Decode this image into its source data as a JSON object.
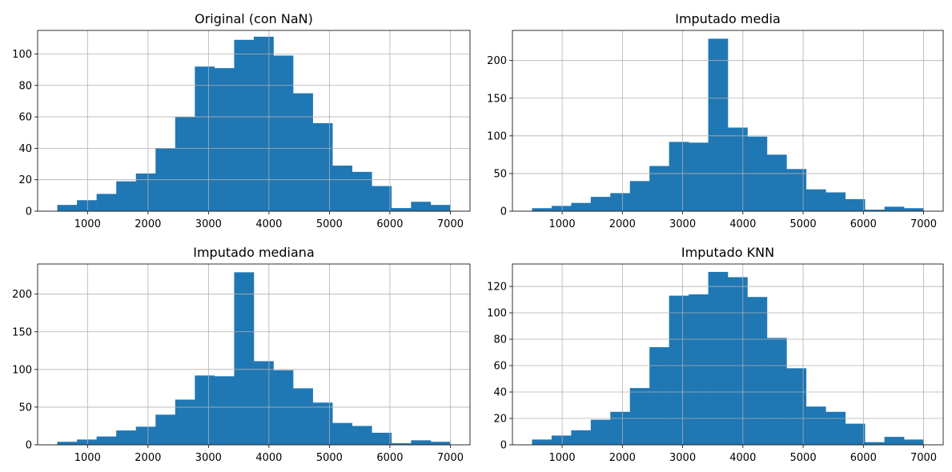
{
  "figure": {
    "background": "#ffffff",
    "bar_color": "#1f77b4",
    "grid_color": "#b0b0b0"
  },
  "chart_data": [
    {
      "type": "bar",
      "title": "Original (con NaN)",
      "bin_edges": [
        500,
        825,
        1150,
        1475,
        1800,
        2125,
        2450,
        2775,
        3100,
        3425,
        3750,
        4075,
        4400,
        4725,
        5050,
        5375,
        5700,
        6025,
        6350,
        6675,
        7000
      ],
      "values": [
        4,
        7,
        11,
        19,
        24,
        40,
        60,
        92,
        91,
        109,
        111,
        99,
        75,
        56,
        29,
        25,
        16,
        2,
        6,
        4
      ],
      "xlim": [
        500,
        7000
      ],
      "ylim": [
        0,
        115
      ],
      "x_ticks": [
        1000,
        2000,
        3000,
        4000,
        5000,
        6000,
        7000
      ],
      "y_ticks": [
        0,
        20,
        40,
        60,
        80,
        100
      ],
      "grid": true
    },
    {
      "type": "bar",
      "title": "Imputado media",
      "bin_edges": [
        500,
        825,
        1150,
        1475,
        1800,
        2125,
        2450,
        2775,
        3100,
        3425,
        3750,
        4075,
        4400,
        4725,
        5050,
        5375,
        5700,
        6025,
        6350,
        6675,
        7000
      ],
      "values": [
        4,
        7,
        11,
        19,
        24,
        40,
        60,
        92,
        91,
        229,
        111,
        99,
        75,
        56,
        29,
        25,
        16,
        2,
        6,
        4
      ],
      "xlim": [
        500,
        7000
      ],
      "ylim": [
        0,
        240
      ],
      "x_ticks": [
        1000,
        2000,
        3000,
        4000,
        5000,
        6000,
        7000
      ],
      "y_ticks": [
        0,
        50,
        100,
        150,
        200
      ],
      "grid": true
    },
    {
      "type": "bar",
      "title": "Imputado mediana",
      "bin_edges": [
        500,
        825,
        1150,
        1475,
        1800,
        2125,
        2450,
        2775,
        3100,
        3425,
        3750,
        4075,
        4400,
        4725,
        5050,
        5375,
        5700,
        6025,
        6350,
        6675,
        7000
      ],
      "values": [
        4,
        7,
        11,
        19,
        24,
        40,
        60,
        92,
        91,
        229,
        111,
        99,
        75,
        56,
        29,
        25,
        16,
        2,
        6,
        4
      ],
      "xlim": [
        500,
        7000
      ],
      "ylim": [
        0,
        240
      ],
      "x_ticks": [
        1000,
        2000,
        3000,
        4000,
        5000,
        6000,
        7000
      ],
      "y_ticks": [
        0,
        50,
        100,
        150,
        200
      ],
      "grid": true
    },
    {
      "type": "bar",
      "title": "Imputado KNN",
      "bin_edges": [
        500,
        825,
        1150,
        1475,
        1800,
        2125,
        2450,
        2775,
        3100,
        3425,
        3750,
        4075,
        4400,
        4725,
        5050,
        5375,
        5700,
        6025,
        6350,
        6675,
        7000
      ],
      "values": [
        4,
        7,
        11,
        19,
        25,
        43,
        74,
        113,
        114,
        131,
        127,
        112,
        81,
        58,
        29,
        25,
        16,
        2,
        6,
        4
      ],
      "xlim": [
        500,
        7000
      ],
      "ylim": [
        0,
        137
      ],
      "x_ticks": [
        1000,
        2000,
        3000,
        4000,
        5000,
        6000,
        7000
      ],
      "y_ticks": [
        0,
        20,
        40,
        60,
        80,
        100,
        120
      ],
      "grid": true
    }
  ]
}
